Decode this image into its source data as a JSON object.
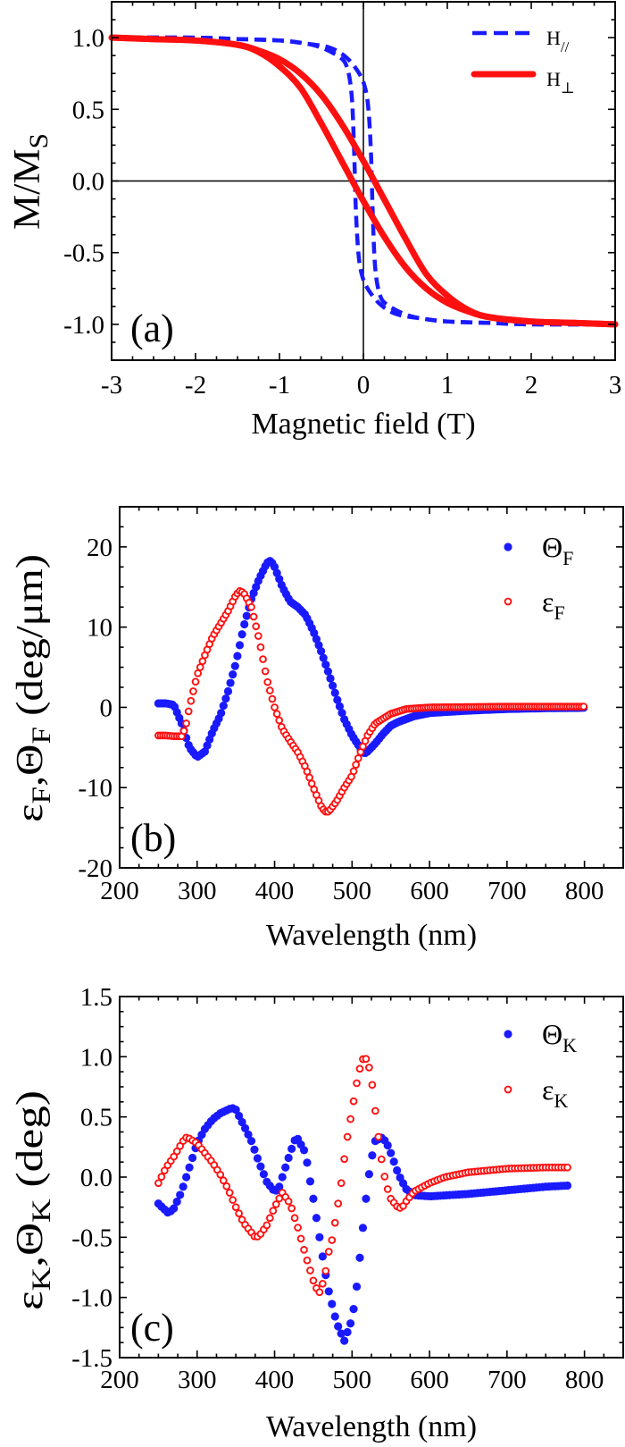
{
  "chart_data": [
    {
      "panel_label": "(a)",
      "type": "line",
      "xlabel": "Magnetic field (T)",
      "ylabel_parts": [
        {
          "t": "M/M"
        },
        {
          "t": "S",
          "sub": true
        }
      ],
      "xlim": [
        -3,
        3
      ],
      "ylim": [
        -1.25,
        1.25
      ],
      "x_ticks": [
        -3,
        -2,
        -1,
        0,
        1,
        2,
        3
      ],
      "x_tick_labels": [
        "-3",
        "-2",
        "-1",
        "0",
        "1",
        "2",
        "3"
      ],
      "y_ticks": [
        1.0,
        0.5,
        0.0,
        -0.5,
        -1.0
      ],
      "y_tick_labels": [
        "1.0",
        "0.5",
        "0.0",
        "-0.5",
        "-1.0"
      ],
      "zero_lines": true,
      "legend_position": "top-right",
      "series": [
        {
          "name": "H",
          "name_sub": "//",
          "color": "#1a1aff",
          "style": "dashed",
          "branches": [
            {
              "x": [
                -3,
                -2,
                -1.5,
                -1,
                -0.7,
                -0.5,
                -0.3,
                -0.2,
                -0.14,
                -0.11,
                -0.09,
                -0.06,
                -0.02,
                0.05,
                0.2,
                0.4,
                0.7,
                1,
                1.5,
                2,
                3
              ],
              "y": [
                1.0,
                1.0,
                0.99,
                0.98,
                0.96,
                0.93,
                0.87,
                0.8,
                0.6,
                0.2,
                -0.2,
                -0.5,
                -0.65,
                -0.75,
                -0.86,
                -0.93,
                -0.96,
                -0.98,
                -0.99,
                -1.0,
                -1.0
              ]
            },
            {
              "x": [
                -3,
                -2,
                -1.5,
                -1,
                -0.7,
                -0.4,
                -0.2,
                -0.05,
                0.02,
                0.06,
                0.09,
                0.11,
                0.14,
                0.2,
                0.3,
                0.5,
                0.7,
                1,
                1.5,
                2,
                3
              ],
              "y": [
                1.0,
                1.0,
                0.99,
                0.98,
                0.96,
                0.93,
                0.86,
                0.75,
                0.65,
                0.5,
                0.2,
                -0.2,
                -0.6,
                -0.8,
                -0.87,
                -0.93,
                -0.96,
                -0.98,
                -0.99,
                -1.0,
                -1.0
              ]
            }
          ]
        },
        {
          "name": "H",
          "name_sub": "⊥",
          "color": "#ff1010",
          "style": "solid",
          "branches": [
            {
              "x": [
                -3,
                -2.5,
                -2,
                -1.5,
                -1.25,
                -1,
                -0.75,
                -0.5,
                -0.25,
                0,
                0.25,
                0.5,
                0.75,
                1,
                1.25,
                1.5,
                2,
                2.5,
                3
              ],
              "y": [
                1.0,
                0.99,
                0.98,
                0.95,
                0.9,
                0.8,
                0.65,
                0.4,
                0.13,
                -0.14,
                -0.39,
                -0.6,
                -0.75,
                -0.85,
                -0.91,
                -0.95,
                -0.98,
                -0.99,
                -1.0
              ]
            },
            {
              "x": [
                -3,
                -2.5,
                -2,
                -1.5,
                -1.25,
                -1,
                -0.75,
                -0.5,
                -0.25,
                0,
                0.25,
                0.5,
                0.75,
                1,
                1.25,
                1.5,
                2,
                2.5,
                3
              ],
              "y": [
                1.0,
                0.99,
                0.98,
                0.95,
                0.91,
                0.85,
                0.75,
                0.6,
                0.39,
                0.14,
                -0.13,
                -0.4,
                -0.65,
                -0.8,
                -0.9,
                -0.95,
                -0.98,
                -0.99,
                -1.0
              ]
            }
          ]
        }
      ]
    },
    {
      "panel_label": "(b)",
      "type": "scatter",
      "xlabel": "Wavelength (nm)",
      "ylabel_parts": [
        {
          "t": "ε"
        },
        {
          "t": "F",
          "sub": true
        },
        {
          "t": ",Θ"
        },
        {
          "t": "F",
          "sub": true
        },
        {
          "t": "  (deg/μm)"
        }
      ],
      "xlim": [
        200,
        850
      ],
      "ylim": [
        -20,
        25
      ],
      "x_ticks": [
        200,
        300,
        400,
        500,
        600,
        700,
        800
      ],
      "x_tick_labels": [
        "200",
        "300",
        "400",
        "500",
        "600",
        "700",
        "800"
      ],
      "y_ticks": [
        20,
        10,
        0,
        -10,
        -20
      ],
      "y_tick_labels": [
        "20",
        "10",
        "0",
        "-10",
        "-20"
      ],
      "legend_position": "top-right",
      "series": [
        {
          "name": "Θ",
          "name_sub": "F",
          "color": "#1a1aff",
          "style": "filled-circle",
          "x": [
            250,
            260,
            270,
            280,
            290,
            300,
            310,
            320,
            330,
            340,
            350,
            360,
            370,
            380,
            390,
            395,
            400,
            410,
            420,
            430,
            440,
            450,
            460,
            470,
            480,
            490,
            500,
            510,
            515,
            520,
            530,
            540,
            550,
            560,
            580,
            600,
            650,
            700,
            750,
            800
          ],
          "y": [
            0.5,
            0.5,
            0.3,
            -2,
            -5,
            -6.2,
            -5.5,
            -3,
            -1,
            2,
            5.5,
            10,
            13.5,
            16,
            18,
            18.3,
            17.5,
            15,
            13.2,
            12.5,
            11.5,
            9.5,
            7,
            4.2,
            1.2,
            -1.5,
            -3.5,
            -5,
            -5.8,
            -5.5,
            -4.5,
            -3.3,
            -2.3,
            -1.8,
            -1.1,
            -0.7,
            -0.4,
            -0.2,
            -0.1,
            -0.05
          ]
        },
        {
          "name": "ε",
          "name_sub": "F",
          "color": "#ff1010",
          "style": "open-circle",
          "x": [
            250,
            260,
            270,
            280,
            285,
            290,
            300,
            310,
            320,
            330,
            340,
            350,
            355,
            360,
            370,
            375,
            380,
            390,
            400,
            410,
            420,
            430,
            440,
            450,
            460,
            465,
            470,
            480,
            490,
            500,
            510,
            520,
            530,
            550,
            570,
            600,
            700,
            800
          ],
          "y": [
            -3.5,
            -3.5,
            -3.6,
            -3.6,
            -2.5,
            0,
            4,
            6.5,
            8.8,
            10.4,
            12,
            14,
            14.5,
            14.3,
            12.5,
            10.5,
            8.5,
            3.5,
            0,
            -2.7,
            -4.2,
            -5.6,
            -7.5,
            -10,
            -12.3,
            -13,
            -13,
            -11.7,
            -10,
            -8.5,
            -5.8,
            -3.5,
            -2,
            -0.8,
            -0.2,
            0,
            0.1,
            0.1
          ]
        }
      ]
    },
    {
      "panel_label": "(c)",
      "type": "scatter",
      "xlabel": "Wavelength (nm)",
      "ylabel_parts": [
        {
          "t": "ε"
        },
        {
          "t": "K",
          "sub": true
        },
        {
          "t": ",Θ"
        },
        {
          "t": "K",
          "sub": true
        },
        {
          "t": "  (deg)"
        }
      ],
      "xlim": [
        200,
        850
      ],
      "ylim": [
        -1.5,
        1.5
      ],
      "x_ticks": [
        200,
        300,
        400,
        500,
        600,
        700,
        800
      ],
      "x_tick_labels": [
        "200",
        "300",
        "400",
        "500",
        "600",
        "700",
        "800"
      ],
      "y_ticks": [
        1.5,
        1.0,
        0.5,
        0.0,
        -0.5,
        -1.0,
        -1.5
      ],
      "y_tick_labels": [
        "1.5",
        "1.0",
        "0.5",
        "0.0",
        "-0.5",
        "-1.0",
        "-1.5"
      ],
      "legend_position": "top-right",
      "series": [
        {
          "name": "Θ",
          "name_sub": "K",
          "color": "#1a1aff",
          "style": "filled-circle",
          "x": [
            250,
            263,
            270,
            280,
            290,
            300,
            310,
            320,
            330,
            345,
            350,
            364,
            370,
            380,
            390,
            400,
            405,
            410,
            420,
            428,
            440,
            445,
            450,
            455,
            460,
            465,
            470,
            480,
            490,
            500,
            505,
            510,
            515,
            520,
            525,
            530,
            539,
            545,
            550,
            560,
            570,
            580,
            600,
            650,
            700,
            750,
            780
          ],
          "y": [
            -0.22,
            -0.3,
            -0.26,
            -0.12,
            0.08,
            0.28,
            0.4,
            0.48,
            0.53,
            0.575,
            0.56,
            0.38,
            0.3,
            0.12,
            -0.04,
            -0.12,
            -0.1,
            0.0,
            0.2,
            0.34,
            0.2,
            0.0,
            -0.18,
            -0.38,
            -0.58,
            -0.78,
            -0.95,
            -1.21,
            -1.36,
            -1.18,
            -0.97,
            -0.67,
            -0.36,
            -0.06,
            0.15,
            0.3,
            0.33,
            0.28,
            0.2,
            0.02,
            -0.1,
            -0.15,
            -0.16,
            -0.14,
            -0.11,
            -0.08,
            -0.07
          ]
        },
        {
          "name": "ε",
          "name_sub": "K",
          "color": "#ff1010",
          "style": "open-circle",
          "x": [
            250,
            260,
            270,
            280,
            285,
            290,
            300,
            310,
            320,
            330,
            340,
            350,
            360,
            375,
            380,
            390,
            400,
            410,
            420,
            430,
            440,
            450,
            457,
            460,
            465,
            470,
            475,
            480,
            485,
            490,
            495,
            500,
            505,
            510,
            515,
            520,
            525,
            530,
            535,
            540,
            545,
            550,
            560,
            565,
            570,
            580,
            600,
            620,
            650,
            700,
            750,
            780
          ],
          "y": [
            -0.05,
            0.08,
            0.17,
            0.28,
            0.33,
            0.32,
            0.28,
            0.2,
            0.12,
            0.02,
            -0.1,
            -0.25,
            -0.38,
            -0.5,
            -0.49,
            -0.4,
            -0.25,
            -0.13,
            -0.22,
            -0.42,
            -0.65,
            -0.86,
            -0.97,
            -0.93,
            -0.82,
            -0.62,
            -0.5,
            -0.3,
            -0.1,
            0.15,
            0.38,
            0.55,
            0.75,
            0.9,
            1.0,
            0.97,
            0.82,
            0.55,
            0.28,
            0.06,
            -0.08,
            -0.18,
            -0.26,
            -0.25,
            -0.2,
            -0.12,
            -0.05,
            0.0,
            0.04,
            0.07,
            0.08,
            0.08
          ]
        }
      ]
    }
  ]
}
